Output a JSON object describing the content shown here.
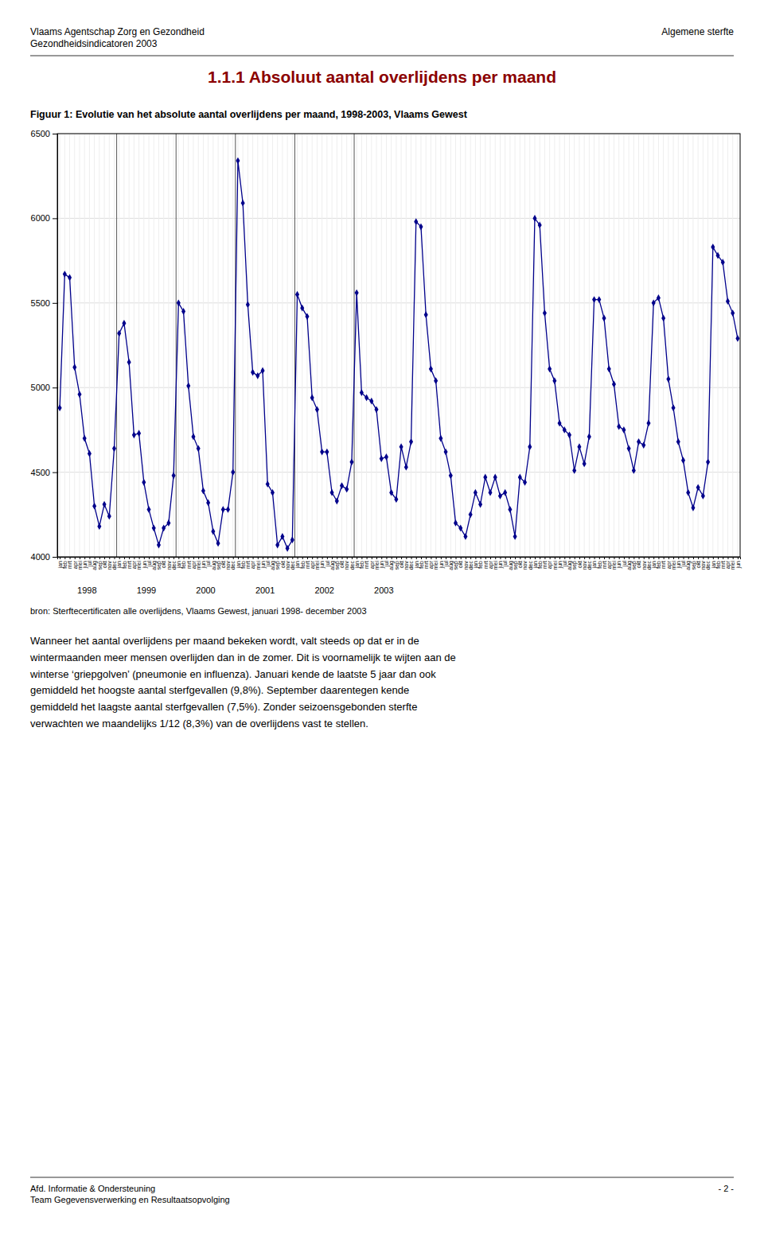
{
  "header_left": [
    "Vlaams Agentschap Zorg en Gezondheid",
    "Gezondheidsindicatoren 2003"
  ],
  "header_right": "Algemene sterfte",
  "section_title": "1.1.1  Absoluut aantal overlijdens per maand",
  "source": "bron: Sterftecertificaten alle overlijdens, Vlaams Gewest, januari 1998- december 2003",
  "body_text": [
    "Wanneer het aantal overlijdens per maand bekeken wordt, valt steeds op dat er in de",
    "wintermaanden meer mensen overlijden dan in de zomer. Dit is voornamelijk te wijten aan de",
    "winterse ‘griepgolven’ (pneumonie en influenza). Januari kende de laatste 5 jaar dan ook",
    "gemiddeld het hoogste aantal sterfgevallen (9,8%). September daarentegen kende",
    "gemiddeld het laagste aantal sterfgevallen (7,5%). Zonder seizoensgebonden sterfte",
    "verwachten we maandelijks 1/12 (8,3%) van de overlijdens vast te stellen."
  ],
  "footer_left": [
    "Afd. Informatie & Ondersteuning",
    "Team Gegevensverwerking en Resultaatsopvolging"
  ],
  "footer_right": "- 2 -",
  "chart_data": {
    "type": "line",
    "title": "Figuur 1: Evolutie van het absolute aantal overlijdens per maand, 1998-2003, Vlaams Gewest",
    "color": "#00008B",
    "marker": "diamond",
    "grid": true,
    "ylim": [
      4000,
      6500
    ],
    "yticks": [
      4000,
      4500,
      5000,
      5500,
      6000,
      6500
    ],
    "year_labels": [
      1998,
      1999,
      2000,
      2001,
      2002,
      2003
    ],
    "categories": [
      "jan",
      "feb",
      "mrt",
      "apr",
      "mei",
      "jun",
      "jul",
      "aug",
      "sep",
      "okt",
      "nov",
      "dec",
      "jan",
      "feb",
      "mrt",
      "apr",
      "mei",
      "jun",
      "jul",
      "aug",
      "sep",
      "okt",
      "nov",
      "dec",
      "jan",
      "feb",
      "mrt",
      "apr",
      "mei",
      "jun",
      "jul",
      "aug",
      "sep",
      "okt",
      "nov",
      "dec",
      "jan",
      "feb",
      "mrt",
      "apr",
      "mei",
      "jun",
      "jul",
      "aug",
      "sep",
      "okt",
      "nov",
      "dec",
      "jan",
      "feb",
      "mrt",
      "apr",
      "mei",
      "jun",
      "jul",
      "aug",
      "sep",
      "okt",
      "nov",
      "dec",
      "jan",
      "feb",
      "mrt",
      "apr",
      "mei",
      "jun",
      "jul",
      "aug",
      "sep",
      "okt",
      "nov",
      "dec",
      "jan",
      "feb",
      "mrt",
      "apr",
      "mei",
      "jun",
      "jul",
      "aug",
      "sep",
      "okt",
      "nov",
      "dec",
      "jan",
      "feb",
      "mrt",
      "apr",
      "mei",
      "jun",
      "jul",
      "aug",
      "sep",
      "okt",
      "nov",
      "dec",
      "jan",
      "feb",
      "mrt",
      "apr",
      "mei",
      "jun",
      "jul",
      "aug",
      "sep",
      "okt",
      "nov",
      "dec",
      "jan",
      "feb",
      "mrt",
      "apr",
      "mei",
      "jun",
      "jul",
      "aug",
      "sep",
      "okt",
      "nov",
      "dec",
      "jan",
      "feb",
      "mrt",
      "apr",
      "mei",
      "jun",
      "jul",
      "aug",
      "sep",
      "okt",
      "nov",
      "dec",
      "jan",
      "feb",
      "mrt",
      "apr",
      "mei",
      "jun"
    ],
    "values": [
      4880,
      5670,
      5650,
      5120,
      4960,
      4700,
      4610,
      4300,
      4180,
      4310,
      4240,
      4640,
      5320,
      5380,
      5150,
      4720,
      4730,
      4440,
      4280,
      4170,
      4070,
      4170,
      4200,
      4480,
      5500,
      5450,
      5010,
      4710,
      4640,
      4390,
      4320,
      4150,
      4080,
      4280,
      4280,
      4500,
      6340,
      6090,
      5490,
      5090,
      5070,
      5100,
      4430,
      4380,
      4070,
      4120,
      4050,
      4100,
      5550,
      5470,
      5420,
      4940,
      4870,
      4620,
      4620,
      4380,
      4330,
      4420,
      4400,
      4560,
      5560,
      4970,
      4940,
      4920,
      4870,
      4580,
      4590,
      4380,
      4340,
      4650,
      4530,
      4680,
      5980,
      5950,
      5430,
      5110,
      5040,
      4700,
      4620,
      4480,
      4200,
      4170,
      4120,
      4250,
      4380,
      4310,
      4470,
      4380,
      4470,
      4360,
      4380,
      4280,
      4120,
      4470,
      4440,
      4650,
      6000,
      5960,
      5440,
      5110,
      5040,
      4790,
      4750,
      4720,
      4510,
      4650,
      4550,
      4710,
      5520,
      5520,
      5410,
      5110,
      5020,
      4770,
      4750,
      4640,
      4510,
      4680,
      4660,
      4790,
      5500,
      5530,
      5410,
      5050,
      4880,
      4680,
      4570,
      4380,
      4290,
      4410,
      4360,
      4560,
      5830,
      5780,
      5740,
      5510,
      5440,
      5290
    ]
  }
}
